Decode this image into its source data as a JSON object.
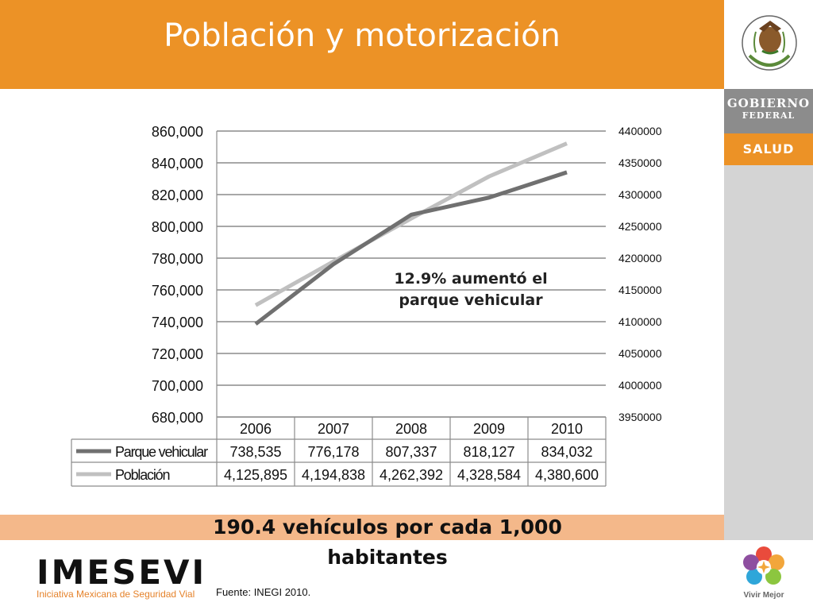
{
  "page": {
    "title": "Población y motorización",
    "callout_lines": [
      "12.9% aumentó el",
      "parque vehicular"
    ],
    "bottom_lines": [
      "190.4 vehículos por cada 1,000",
      "habitantes"
    ],
    "source": "Fuente: INEGI 2010.",
    "brand": {
      "name": "IMESEVI",
      "subtitle": "Iniciativa Mexicana de Seguridad Vial"
    },
    "sidebar": {
      "gobierno_line1": "GOBIERNO",
      "gobierno_line2": "FEDERAL",
      "salud": "SALUD",
      "vivir": "Vivir Mejor"
    },
    "colors": {
      "orange": "#ec9226",
      "light_orange": "#f4b88a",
      "sidebar_grey": "#d4d4d4",
      "dark_grey": "#8c8c8c"
    }
  },
  "chart_data": {
    "type": "line",
    "categories": [
      "2006",
      "2007",
      "2008",
      "2009",
      "2010"
    ],
    "series": [
      {
        "name": "Parque vehicular",
        "axis": "left",
        "color": "#707070",
        "values": [
          738535,
          776178,
          807337,
          818127,
          834032
        ],
        "labels": [
          "738,535",
          "776,178",
          "807,337",
          "818,127",
          "834,032"
        ]
      },
      {
        "name": "Población",
        "axis": "right",
        "color": "#c0c0c0",
        "values": [
          4125895,
          4194838,
          4262392,
          4328584,
          4380600
        ],
        "labels": [
          "4,125,895",
          "4,194,838",
          "4,262,392",
          "4,328,584",
          "4,380,600"
        ]
      }
    ],
    "y_left": {
      "range": [
        680000,
        860000
      ],
      "ticks": [
        860000,
        840000,
        820000,
        800000,
        780000,
        760000,
        740000,
        720000,
        700000,
        680000
      ],
      "tick_labels": [
        "860,000",
        "840,000",
        "820,000",
        "800,000",
        "780,000",
        "760,000",
        "740,000",
        "720,000",
        "700,000",
        "680,000"
      ]
    },
    "y_right": {
      "range": [
        3950000,
        4400000
      ],
      "ticks": [
        4400000,
        4350000,
        4300000,
        4250000,
        4200000,
        4150000,
        4100000,
        4050000,
        4000000,
        3950000
      ],
      "tick_labels": [
        "4400000",
        "4350000",
        "4300000",
        "4250000",
        "4200000",
        "4150000",
        "4100000",
        "4050000",
        "4000000",
        "3950000"
      ]
    },
    "grid": true,
    "legend": "data-table",
    "data_table": true
  }
}
